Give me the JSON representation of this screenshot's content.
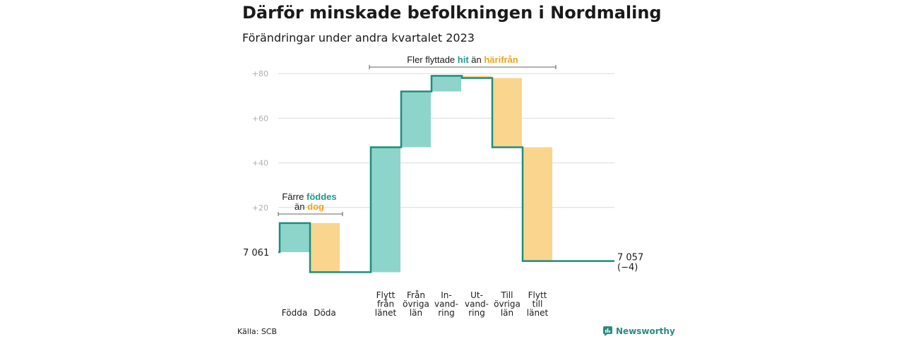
{
  "title": "Därför minskade befolkningen i Nordmaling",
  "subtitle": "Förändringar under andra kvartalet 2023",
  "source": "Källa: SCB",
  "brand": "Newsworthy",
  "colors": {
    "increase_fill": "#8dd5cb",
    "decrease_fill": "#fad58e",
    "line": "#1d8e7c",
    "teal_text": "#22988a",
    "orange_text": "#f2a31b",
    "grid": "#dcdcdc",
    "tick": "#b0b0b0"
  },
  "annotations": {
    "births_line1": "Färre",
    "births_highlight1": "föddes",
    "births_line2": "än",
    "births_highlight2": "dog",
    "moves_text1": "Fler flyttade",
    "moves_highlight1": "hit",
    "moves_text2": "än",
    "moves_highlight2": "härifrån"
  },
  "chart_data": {
    "type": "waterfall",
    "title": "Därför minskade befolkningen i Nordmaling",
    "subtitle": "Förändringar under andra kvartalet 2023",
    "start_value": 0,
    "start_label": "7 061",
    "end_value": -4,
    "end_label": "7 057",
    "end_change_label": "(−4)",
    "ylim": [
      -10,
      85
    ],
    "yticks": [
      20,
      40,
      60,
      80
    ],
    "ytick_labels": [
      "+20",
      "+40",
      "+60",
      "+80"
    ],
    "grid": true,
    "categories": [
      {
        "label": [
          "Födda"
        ],
        "value": 13
      },
      {
        "label": [
          "Döda"
        ],
        "value": -22
      },
      {
        "label": [
          "Flytt",
          "från",
          "länet"
        ],
        "value": 56
      },
      {
        "label": [
          "Från",
          "övriga",
          "län"
        ],
        "value": 25
      },
      {
        "label": [
          "In-",
          "vand-",
          "ring"
        ],
        "value": 7
      },
      {
        "label": [
          "Ut-",
          "vand-",
          "ring"
        ],
        "value": -1
      },
      {
        "label": [
          "Till",
          "övriga",
          "län"
        ],
        "value": -31
      },
      {
        "label": [
          "Flytt",
          "till",
          "länet"
        ],
        "value": -51
      }
    ]
  }
}
